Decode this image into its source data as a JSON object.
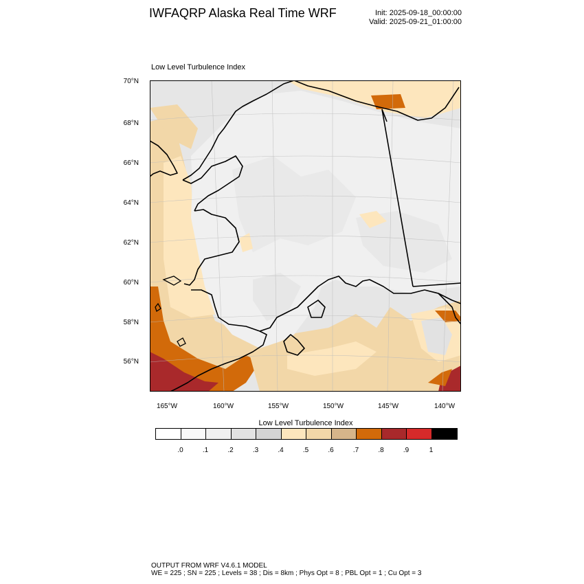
{
  "header": {
    "title": "IWFAQRP Alaska Real Time WRF",
    "init": "Init: 2025-09-18_00:00:00",
    "valid": "Valid: 2025-09-21_01:00:00"
  },
  "plot": {
    "title": "Low Level Turbulence Index"
  },
  "map": {
    "lat_labels": [
      "70°N",
      "68°N",
      "66°N",
      "64°N",
      "62°N",
      "60°N",
      "58°N",
      "56°N"
    ],
    "lon_labels": [
      "165°W",
      "160°W",
      "155°W",
      "150°W",
      "145°W",
      "140°W"
    ]
  },
  "colorbar": {
    "title": "Low Level Turbulence Index",
    "colors": [
      "#ffffff",
      "#f8f8f8",
      "#f0f0f0",
      "#e2e2e2",
      "#d4d4d4",
      "#fde6bd",
      "#f2d7a8",
      "#d6b58a",
      "#d26a0a",
      "#a9292b",
      "#d62a2a",
      "#000000"
    ],
    "labels": [
      ".0",
      ".1",
      ".2",
      ".3",
      ".4",
      ".5",
      ".6",
      ".7",
      ".8",
      ".9",
      "1"
    ]
  },
  "footer": {
    "line1": "OUTPUT FROM WRF V4.6.1 MODEL",
    "line2": "WE = 225 ; SN = 225 ; Levels = 38 ; Dis = 8km ; Phys Opt = 8 ; PBL Opt = 1 ; Cu Opt = 3"
  }
}
